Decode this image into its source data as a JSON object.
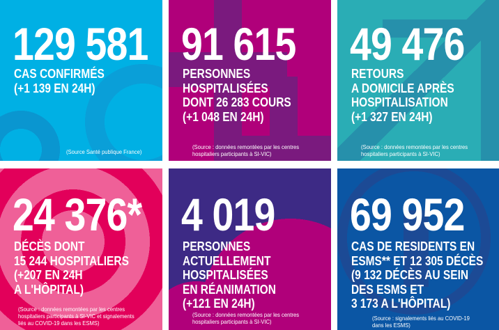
{
  "panels": [
    {
      "number": "129 581",
      "label": [
        "CAS CONFIRMÉS",
        "(+1 139 EN 24H)"
      ],
      "source": "(Source Santé publique France)",
      "color": "#00b0e4"
    },
    {
      "number": "91 615",
      "label": [
        "PERSONNES",
        "HOSPITALISÉES",
        "DONT 26 283 COURS",
        "(+1 048 EN 24H)"
      ],
      "source": "(Source : données remontées par les centres\nhospitaliers participants à SI-VIC)",
      "color": "#b0007a"
    },
    {
      "number": "49 476",
      "label": [
        "RETOURS",
        "A DOMICILE APRÈS",
        "HOSPITALISATION",
        "(+1 327 EN 24H)"
      ],
      "source": "(Source : données remontées par les centres\nhospitaliers participants à SI-VIC)",
      "color": "#2aadb5"
    },
    {
      "number": "24 376*",
      "label": [
        "DÉCÈS DONT",
        "15 244 HOSPITALIERS",
        "(+207 EN 24H",
        "A L'HÔPITAL)"
      ],
      "source": "(Source : données remontées par les centres\nhospitaliers participants à SI-VIC et signalements\nliés au COVID-19 dans les ESMS)",
      "color": "#ef6098"
    },
    {
      "number": "4 019",
      "label": [
        "PERSONNES",
        "ACTUELLEMENT",
        "HOSPITALISÉES",
        "EN RÉANIMATION",
        "(+121 EN 24H)"
      ],
      "source": "(Source : données remontées par les centres\nhospitaliers participants à SI-VIC)",
      "color": "#3d2a85"
    },
    {
      "number": "69 952",
      "label": [
        "CAS DE RESIDENTS EN",
        "ESMS** ET 12 305 DÉCÈS",
        "(9 132 DÉCÈS AU SEIN",
        "DES ESMS ET",
        "3 173 A L'HÔPITAL)"
      ],
      "source": "(Source : signalements liés au COVID-19\ndans les ESMS)",
      "color": "#0b56a4"
    }
  ]
}
